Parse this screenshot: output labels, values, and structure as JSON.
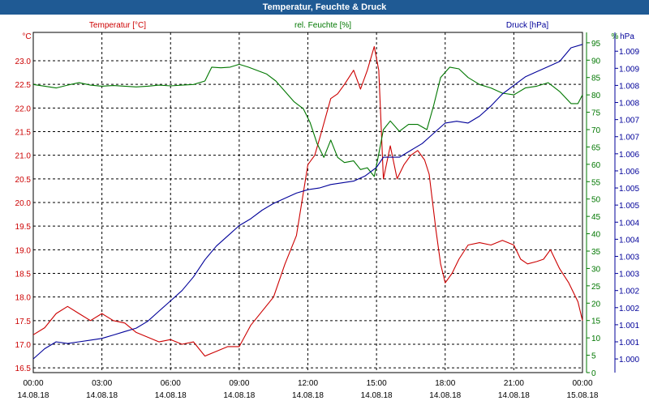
{
  "title": "Temperatur, Feuchte & Druck",
  "colors": {
    "temp": "#cc0000",
    "hum": "#007700",
    "press": "#000099",
    "title_bg": "#1f5a94"
  },
  "chart_data": {
    "type": "line",
    "title": "Temperatur, Feuchte & Druck",
    "x_labels": [
      {
        "hour": 0,
        "time": "00:00",
        "date": "14.08.18"
      },
      {
        "hour": 3,
        "time": "03:00",
        "date": "14.08.18"
      },
      {
        "hour": 6,
        "time": "06:00",
        "date": "14.08.18"
      },
      {
        "hour": 9,
        "time": "09:00",
        "date": "14.08.18"
      },
      {
        "hour": 12,
        "time": "12:00",
        "date": "14.08.18"
      },
      {
        "hour": 15,
        "time": "15:00",
        "date": "14.08.18"
      },
      {
        "hour": 18,
        "time": "18:00",
        "date": "14.08.18"
      },
      {
        "hour": 21,
        "time": "21:00",
        "date": "14.08.18"
      },
      {
        "hour": 24,
        "time": "00:00",
        "date": "15.08.18"
      }
    ],
    "xlim": [
      0,
      24
    ],
    "series": [
      {
        "key": "temp",
        "name": "Temperatur [°C]",
        "unit": "°C",
        "ylim": [
          16.4,
          23.6
        ],
        "ticks": [
          "16.5",
          "17.0",
          "17.5",
          "18.0",
          "18.5",
          "19.0",
          "19.5",
          "20.0",
          "20.5",
          "21.0",
          "21.5",
          "22.0",
          "22.5",
          "23.0"
        ],
        "points": [
          [
            0,
            17.2
          ],
          [
            0.5,
            17.35
          ],
          [
            1.0,
            17.65
          ],
          [
            1.5,
            17.8
          ],
          [
            2.0,
            17.65
          ],
          [
            2.5,
            17.5
          ],
          [
            3.0,
            17.65
          ],
          [
            3.5,
            17.5
          ],
          [
            4.0,
            17.45
          ],
          [
            4.5,
            17.25
          ],
          [
            5.0,
            17.15
          ],
          [
            5.5,
            17.05
          ],
          [
            6.0,
            17.1
          ],
          [
            6.5,
            17.0
          ],
          [
            7.0,
            17.05
          ],
          [
            7.5,
            16.75
          ],
          [
            8.0,
            16.85
          ],
          [
            8.5,
            16.95
          ],
          [
            9.0,
            16.95
          ],
          [
            9.5,
            17.4
          ],
          [
            10.0,
            17.7
          ],
          [
            10.5,
            18.0
          ],
          [
            11.0,
            18.7
          ],
          [
            11.5,
            19.3
          ],
          [
            12.0,
            20.8
          ],
          [
            12.3,
            21.0
          ],
          [
            12.6,
            21.5
          ],
          [
            13.0,
            22.2
          ],
          [
            13.3,
            22.3
          ],
          [
            13.6,
            22.5
          ],
          [
            14.0,
            22.8
          ],
          [
            14.3,
            22.4
          ],
          [
            14.6,
            22.8
          ],
          [
            14.9,
            23.3
          ],
          [
            15.1,
            22.8
          ],
          [
            15.3,
            20.5
          ],
          [
            15.6,
            21.2
          ],
          [
            15.9,
            20.5
          ],
          [
            16.2,
            20.8
          ],
          [
            16.5,
            21.0
          ],
          [
            16.8,
            21.1
          ],
          [
            17.1,
            20.9
          ],
          [
            17.3,
            20.6
          ],
          [
            17.6,
            19.4
          ],
          [
            17.8,
            18.7
          ],
          [
            18.0,
            18.3
          ],
          [
            18.3,
            18.5
          ],
          [
            18.6,
            18.8
          ],
          [
            19.0,
            19.1
          ],
          [
            19.5,
            19.15
          ],
          [
            20.0,
            19.1
          ],
          [
            20.5,
            19.2
          ],
          [
            21.0,
            19.1
          ],
          [
            21.3,
            18.8
          ],
          [
            21.6,
            18.7
          ],
          [
            22.0,
            18.75
          ],
          [
            22.3,
            18.8
          ],
          [
            22.6,
            19.0
          ],
          [
            23.0,
            18.6
          ],
          [
            23.4,
            18.3
          ],
          [
            23.8,
            17.9
          ],
          [
            24.0,
            17.5
          ]
        ]
      },
      {
        "key": "hum",
        "name": "rel. Feuchte [%]",
        "unit": "%",
        "ylim": [
          0,
          98
        ],
        "ticks": [
          "0",
          "5",
          "10",
          "15",
          "20",
          "25",
          "30",
          "35",
          "40",
          "45",
          "50",
          "55",
          "60",
          "65",
          "70",
          "75",
          "80",
          "85",
          "90",
          "95"
        ],
        "points": [
          [
            0,
            83
          ],
          [
            0.5,
            82.5
          ],
          [
            1.0,
            82
          ],
          [
            1.5,
            82.8
          ],
          [
            2.0,
            83.5
          ],
          [
            2.5,
            82.8
          ],
          [
            3.0,
            82.5
          ],
          [
            3.5,
            82.7
          ],
          [
            4.0,
            82.5
          ],
          [
            4.5,
            82.3
          ],
          [
            5.0,
            82.5
          ],
          [
            5.5,
            82.8
          ],
          [
            6.0,
            82.6
          ],
          [
            6.5,
            82.8
          ],
          [
            7.0,
            83
          ],
          [
            7.5,
            84
          ],
          [
            7.8,
            88
          ],
          [
            8.2,
            87.8
          ],
          [
            8.6,
            88
          ],
          [
            9.0,
            88.8
          ],
          [
            9.4,
            88
          ],
          [
            9.8,
            87
          ],
          [
            10.2,
            86
          ],
          [
            10.6,
            84
          ],
          [
            11.0,
            81
          ],
          [
            11.4,
            78
          ],
          [
            11.8,
            76
          ],
          [
            12.1,
            72
          ],
          [
            12.4,
            66
          ],
          [
            12.7,
            62
          ],
          [
            13.0,
            67
          ],
          [
            13.3,
            62
          ],
          [
            13.6,
            60.5
          ],
          [
            14.0,
            61
          ],
          [
            14.3,
            58.5
          ],
          [
            14.6,
            59
          ],
          [
            14.9,
            56.5
          ],
          [
            15.1,
            63
          ],
          [
            15.3,
            70
          ],
          [
            15.6,
            72.5
          ],
          [
            16.0,
            69.5
          ],
          [
            16.4,
            71.5
          ],
          [
            16.8,
            71.5
          ],
          [
            17.2,
            70
          ],
          [
            17.5,
            77
          ],
          [
            17.8,
            85
          ],
          [
            18.2,
            88
          ],
          [
            18.6,
            87.5
          ],
          [
            19.0,
            85
          ],
          [
            19.5,
            83
          ],
          [
            20.0,
            82
          ],
          [
            20.5,
            80.5
          ],
          [
            21.0,
            80
          ],
          [
            21.5,
            82
          ],
          [
            22.0,
            82.5
          ],
          [
            22.5,
            83.5
          ],
          [
            23.0,
            81
          ],
          [
            23.5,
            77.5
          ],
          [
            23.8,
            77.5
          ],
          [
            24.0,
            80
          ]
        ]
      },
      {
        "key": "press",
        "name": "Druck [hPa]",
        "unit": "hPa",
        "ylim": [
          999.6,
          1009.55
        ],
        "ticks": [
          "1.000",
          "1.001",
          "1.001",
          "1.002",
          "1.002",
          "1.003",
          "1.003",
          "1.004",
          "1.004",
          "1.005",
          "1.005",
          "1.006",
          "1.006",
          "1.007",
          "1.007",
          "1.008",
          "1.008",
          "1.009",
          "1.009"
        ],
        "points": [
          [
            0,
            1000.0
          ],
          [
            0.5,
            1000.3
          ],
          [
            1.0,
            1000.5
          ],
          [
            1.5,
            1000.45
          ],
          [
            2.0,
            1000.5
          ],
          [
            2.5,
            1000.55
          ],
          [
            3.0,
            1000.6
          ],
          [
            3.5,
            1000.7
          ],
          [
            4.0,
            1000.8
          ],
          [
            4.5,
            1000.9
          ],
          [
            5.0,
            1001.1
          ],
          [
            5.5,
            1001.4
          ],
          [
            6.0,
            1001.7
          ],
          [
            6.5,
            1002.0
          ],
          [
            7.0,
            1002.4
          ],
          [
            7.5,
            1002.9
          ],
          [
            8.0,
            1003.3
          ],
          [
            8.5,
            1003.6
          ],
          [
            9.0,
            1003.9
          ],
          [
            9.5,
            1004.1
          ],
          [
            10.0,
            1004.35
          ],
          [
            10.5,
            1004.55
          ],
          [
            11.0,
            1004.7
          ],
          [
            11.5,
            1004.85
          ],
          [
            12.0,
            1004.95
          ],
          [
            12.5,
            1005.0
          ],
          [
            13.0,
            1005.1
          ],
          [
            13.5,
            1005.15
          ],
          [
            14.0,
            1005.2
          ],
          [
            14.5,
            1005.35
          ],
          [
            15.0,
            1005.6
          ],
          [
            15.3,
            1005.9
          ],
          [
            16.0,
            1005.9
          ],
          [
            16.5,
            1006.1
          ],
          [
            17.0,
            1006.3
          ],
          [
            17.5,
            1006.6
          ],
          [
            18.0,
            1006.9
          ],
          [
            18.5,
            1006.95
          ],
          [
            19.0,
            1006.9
          ],
          [
            19.5,
            1007.1
          ],
          [
            20.0,
            1007.4
          ],
          [
            20.5,
            1007.75
          ],
          [
            21.0,
            1008.0
          ],
          [
            21.5,
            1008.25
          ],
          [
            22.0,
            1008.4
          ],
          [
            22.5,
            1008.55
          ],
          [
            23.0,
            1008.7
          ],
          [
            23.5,
            1009.1
          ],
          [
            24.0,
            1009.2
          ]
        ]
      }
    ]
  }
}
